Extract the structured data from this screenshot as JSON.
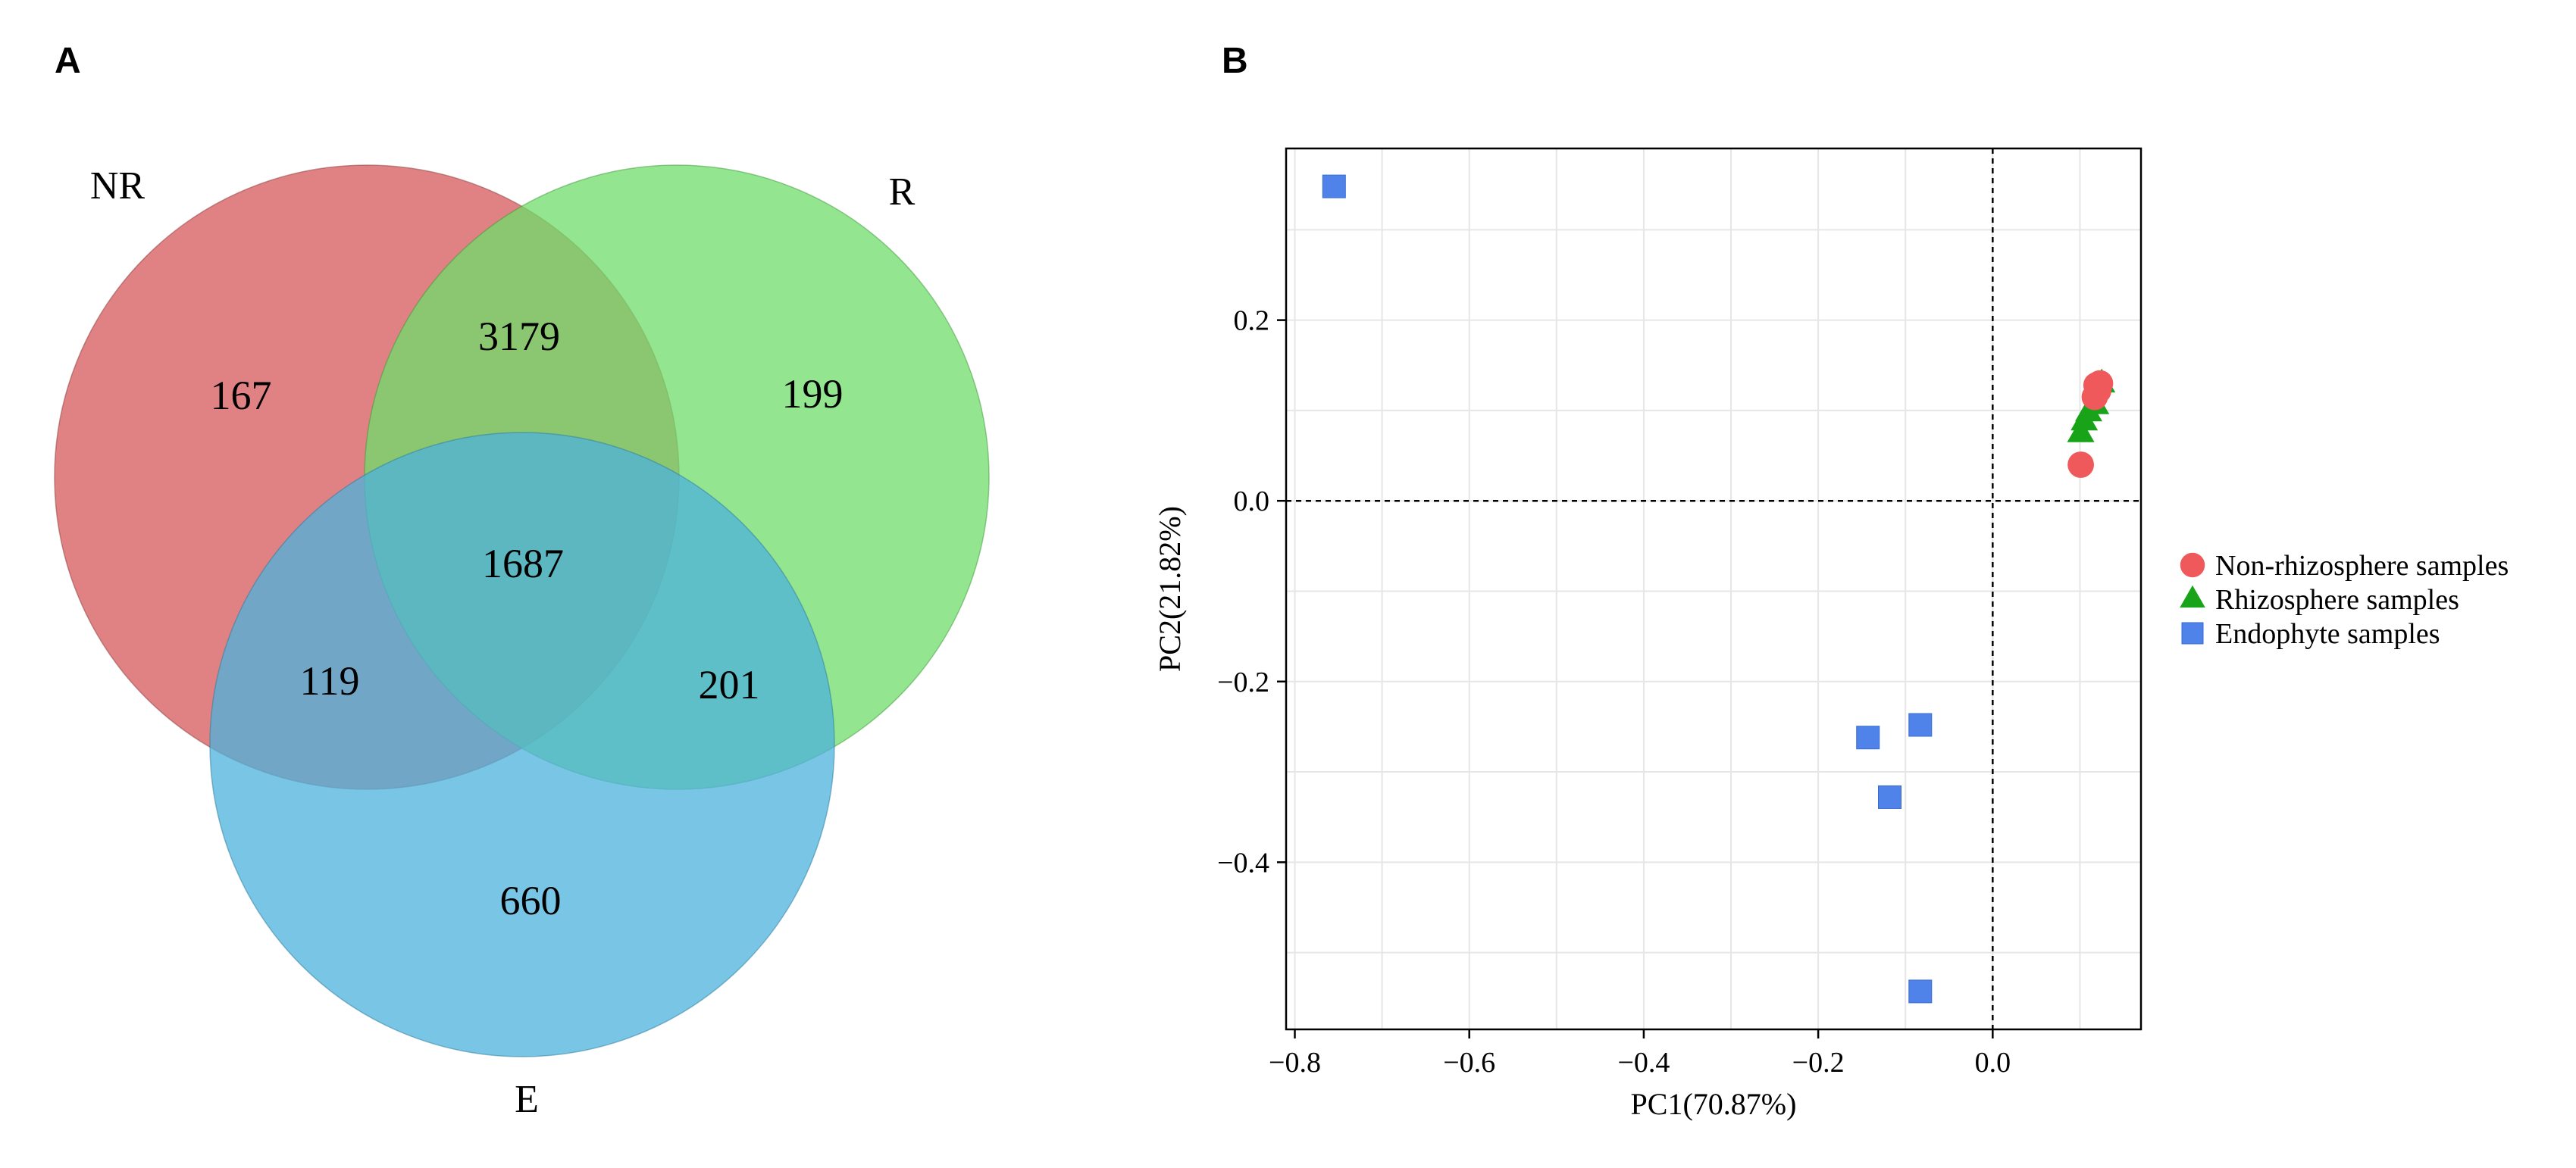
{
  "panels": {
    "a": "A",
    "b": "B"
  },
  "venn": {
    "sets": [
      {
        "key": "NR",
        "label": "NR",
        "color": "#d6585a"
      },
      {
        "key": "R",
        "label": "R",
        "color": "#6fdc6a"
      },
      {
        "key": "E",
        "label": "E",
        "color": "#4cb1dc"
      }
    ],
    "regions": {
      "NR_only": "167",
      "NR_R": "3179",
      "R_only": "199",
      "NR_R_E": "1687",
      "NR_E": "119",
      "R_E": "201",
      "E_only": "660"
    }
  },
  "chart_data": {
    "type": "scatter",
    "title": "",
    "xlabel": "PC1(70.87%)",
    "ylabel": "PC2(21.82%)",
    "xlim": [
      -0.81,
      0.17
    ],
    "ylim": [
      -0.585,
      0.39
    ],
    "xticks": [
      -0.8,
      -0.6,
      -0.4,
      -0.2,
      0.0
    ],
    "xtick_labels": [
      "−0.8",
      "−0.6",
      "−0.4",
      "−0.2",
      "0.0"
    ],
    "yticks": [
      -0.4,
      -0.2,
      0.0,
      0.2
    ],
    "ytick_labels": [
      "−0.4",
      "−0.2",
      "0.0",
      "0.2"
    ],
    "grid": true,
    "reference_lines": {
      "x": 0.0,
      "y": 0.0
    },
    "legend_position": "right",
    "series": [
      {
        "name": "Non-rhizosphere samples",
        "marker": "circle",
        "color": "#f0595b",
        "points": [
          [
            0.101,
            0.04
          ],
          [
            0.117,
            0.115
          ],
          [
            0.121,
            0.122
          ],
          [
            0.119,
            0.128
          ],
          [
            0.123,
            0.13
          ]
        ]
      },
      {
        "name": "Rhizosphere samples",
        "marker": "triangle",
        "color": "#18a318",
        "points": [
          [
            0.101,
            0.075
          ],
          [
            0.105,
            0.088
          ],
          [
            0.11,
            0.098
          ],
          [
            0.118,
            0.106
          ],
          [
            0.125,
            0.13
          ]
        ]
      },
      {
        "name": "Endophyte samples",
        "marker": "square",
        "color": "#4f83ea",
        "points": [
          [
            -0.755,
            0.348
          ],
          [
            -0.143,
            -0.262
          ],
          [
            -0.083,
            -0.248
          ],
          [
            -0.118,
            -0.328
          ],
          [
            -0.083,
            -0.543
          ]
        ]
      }
    ]
  }
}
